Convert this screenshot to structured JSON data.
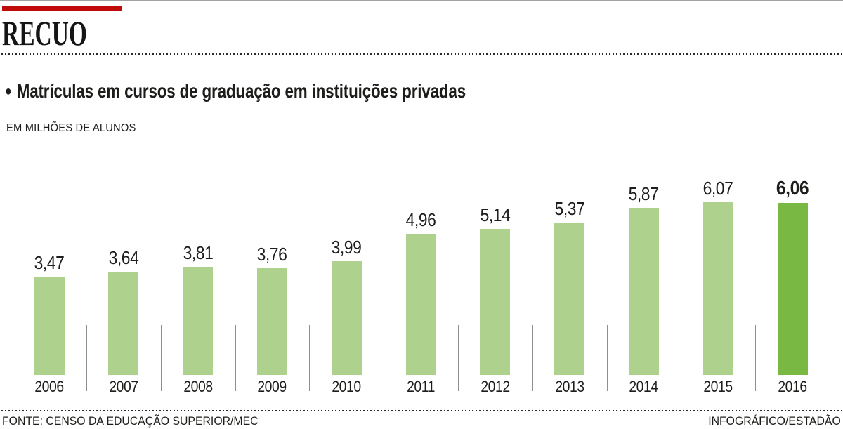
{
  "masthead": {
    "title": "RECUO",
    "accent_color": "#c00b0b"
  },
  "chart": {
    "bullet": "●",
    "heading": "Matrículas em cursos de graduação em instituições privadas",
    "unit_label": "EM MILHÕES DE ALUNOS"
  },
  "footer": {
    "source": "FONTE: CENSO DA EDUCAÇÃO SUPERIOR/MEC",
    "credit": "INFOGRÁFICO/ESTADÃO"
  },
  "chart_data": {
    "type": "bar",
    "title": "Matrículas em cursos de graduação em instituições privadas",
    "ylabel": "EM MILHÕES DE ALUNOS",
    "categories": [
      "2006",
      "2007",
      "2008",
      "2009",
      "2010",
      "2011",
      "2012",
      "2013",
      "2014",
      "2015",
      "2016"
    ],
    "values": [
      3.47,
      3.64,
      3.81,
      3.76,
      3.99,
      4.96,
      5.14,
      5.37,
      5.87,
      6.07,
      6.06
    ],
    "value_labels": [
      "3,47",
      "3,64",
      "3,81",
      "3,76",
      "3,99",
      "4,96",
      "5,14",
      "5,37",
      "5,87",
      "6,07",
      "6,06"
    ],
    "highlight_index": 10,
    "bar_color": "#aed28e",
    "highlight_color": "#78b843",
    "text_color": "#1d1d1b",
    "ylim": [
      0,
      6.5
    ],
    "grid": false,
    "legend": false
  }
}
